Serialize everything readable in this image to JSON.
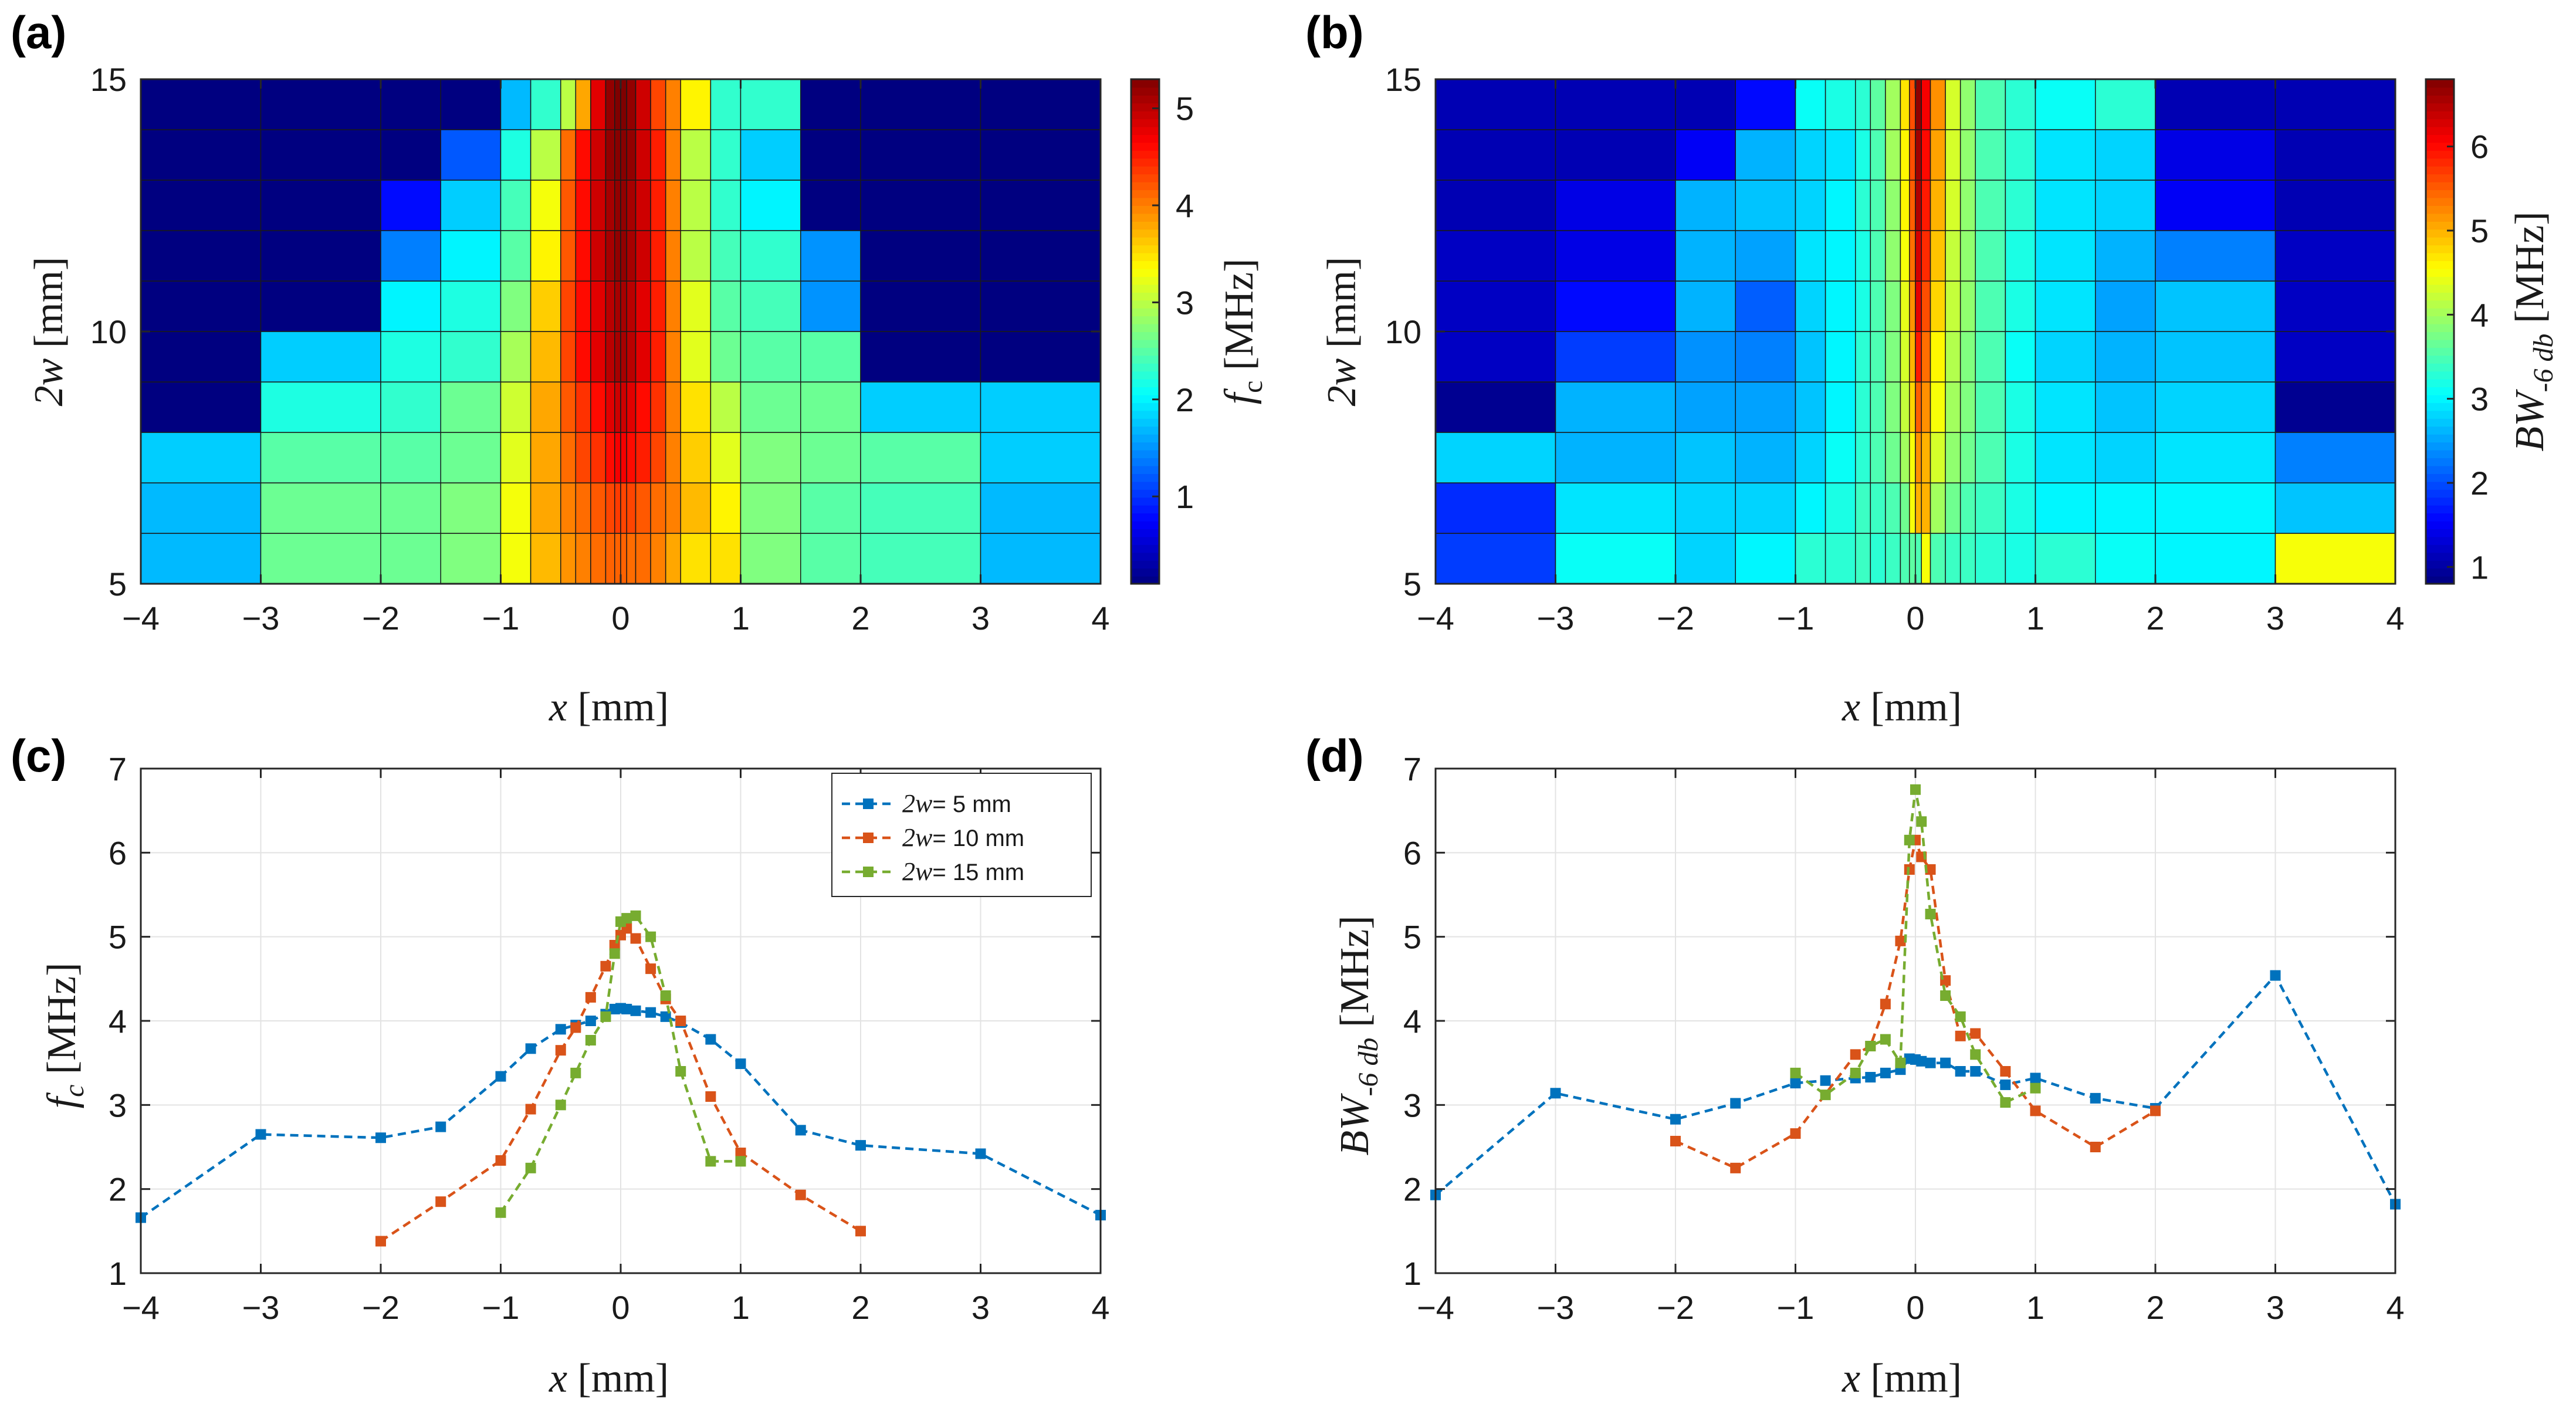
{
  "chart_data": [
    {
      "id": "a",
      "type": "heatmap",
      "panel_label": "(a)",
      "xlabel": {
        "var": "x",
        "unit": "[mm]"
      },
      "ylabel": {
        "var": "2w",
        "unit": "[mm]"
      },
      "colorbar_label": {
        "var": "f",
        "sub": "c",
        "unit": "[MHz]"
      },
      "xlim": [
        -4,
        4
      ],
      "ylim": [
        5,
        15
      ],
      "clim": [
        0.1,
        5.3
      ],
      "xticks": [
        "-4",
        "-3",
        "-2",
        "-1",
        "0",
        "1",
        "2",
        "3",
        "4"
      ],
      "yticks": [
        "5",
        "10",
        "15"
      ],
      "cticks": [
        "1",
        "2",
        "3",
        "4",
        "5"
      ],
      "x_edges": [
        -4,
        -3,
        -2,
        -1.5,
        -1,
        -0.75,
        -0.5,
        -0.375,
        -0.25,
        -0.125,
        -0.05,
        0,
        0.05,
        0.125,
        0.25,
        0.375,
        0.5,
        0.75,
        1,
        1.5,
        2,
        3,
        4
      ],
      "y_edges": [
        5,
        6,
        7,
        8,
        9,
        10,
        11,
        12,
        13,
        14,
        15
      ],
      "z": [
        [
          1.7,
          2.6,
          2.6,
          2.7,
          3.3,
          3.7,
          3.9,
          4.0,
          4.1,
          4.15,
          4.15,
          4.15,
          4.1,
          4.1,
          4.0,
          3.8,
          3.5,
          3.5,
          2.7,
          2.5,
          2.4,
          1.7
        ],
        [
          1.7,
          2.6,
          2.6,
          2.7,
          3.3,
          3.8,
          4.0,
          4.1,
          4.2,
          4.3,
          4.35,
          4.3,
          4.3,
          4.2,
          4.1,
          4.0,
          3.7,
          3.4,
          2.7,
          2.5,
          2.4,
          1.7
        ],
        [
          1.8,
          2.5,
          2.5,
          2.6,
          3.2,
          3.8,
          4.1,
          4.3,
          4.4,
          4.6,
          4.7,
          4.7,
          4.6,
          4.5,
          4.3,
          4.0,
          3.6,
          3.2,
          2.7,
          2.6,
          2.5,
          1.8
        ],
        [
          0.1,
          2.2,
          2.3,
          2.6,
          3.1,
          3.8,
          4.2,
          4.4,
          4.6,
          4.8,
          4.9,
          4.9,
          4.8,
          4.6,
          4.4,
          4.0,
          3.5,
          3.0,
          2.6,
          2.6,
          1.8,
          1.8
        ],
        [
          0.1,
          1.8,
          2.2,
          2.3,
          2.9,
          3.7,
          4.3,
          4.6,
          4.8,
          5.0,
          5.1,
          5.1,
          5.0,
          4.8,
          4.5,
          4.0,
          3.2,
          2.6,
          2.5,
          2.5,
          0.1,
          0.1
        ],
        [
          0.1,
          0.1,
          2.0,
          2.2,
          2.7,
          3.6,
          4.3,
          4.6,
          4.8,
          5.0,
          5.1,
          5.1,
          5.0,
          4.8,
          4.5,
          4.0,
          3.2,
          2.5,
          2.4,
          1.5,
          0.1,
          0.1
        ],
        [
          0.1,
          0.1,
          1.4,
          2.0,
          2.5,
          3.4,
          4.2,
          4.6,
          4.9,
          5.1,
          5.2,
          5.2,
          5.1,
          4.9,
          4.5,
          4.0,
          3.0,
          2.4,
          2.3,
          1.5,
          0.1,
          0.1
        ],
        [
          0.1,
          0.1,
          0.8,
          1.8,
          2.4,
          3.3,
          4.2,
          4.6,
          4.9,
          5.1,
          5.2,
          5.2,
          5.1,
          4.9,
          4.5,
          4.0,
          3.0,
          2.3,
          2.0,
          0.1,
          0.1,
          0.1
        ],
        [
          0.1,
          0.1,
          0.1,
          1.2,
          2.2,
          3.0,
          4.1,
          4.6,
          4.9,
          5.2,
          5.25,
          5.25,
          5.2,
          4.9,
          4.5,
          4.0,
          3.0,
          2.3,
          1.8,
          0.1,
          0.1,
          0.1
        ],
        [
          0.1,
          0.1,
          0.1,
          0.1,
          1.7,
          2.3,
          3.0,
          3.8,
          4.8,
          5.2,
          5.3,
          5.3,
          5.2,
          4.9,
          4.3,
          4.0,
          3.4,
          2.3,
          2.3,
          0.1,
          0.1,
          0.1
        ]
      ]
    },
    {
      "id": "b",
      "type": "heatmap",
      "panel_label": "(b)",
      "xlabel": {
        "var": "x",
        "unit": "[mm]"
      },
      "ylabel": {
        "var": "2w",
        "unit": "[mm]"
      },
      "colorbar_label": {
        "var": "BW",
        "sub": "-6 db",
        "unit": "[MHz]"
      },
      "xlim": [
        -4,
        4
      ],
      "ylim": [
        5,
        15
      ],
      "clim": [
        0.8,
        6.8
      ],
      "xticks": [
        "-4",
        "-3",
        "-2",
        "-1",
        "0",
        "1",
        "2",
        "3",
        "4"
      ],
      "yticks": [
        "5",
        "10",
        "15"
      ],
      "cticks": [
        "1",
        "2",
        "3",
        "4",
        "5",
        "6"
      ],
      "x_edges": [
        -4,
        -3,
        -2,
        -1.5,
        -1,
        -0.75,
        -0.5,
        -0.375,
        -0.25,
        -0.125,
        -0.05,
        0,
        0.05,
        0.125,
        0.25,
        0.375,
        0.5,
        0.75,
        1,
        1.5,
        2,
        3,
        4
      ],
      "y_edges": [
        5,
        6,
        7,
        8,
        9,
        10,
        11,
        12,
        13,
        14,
        15
      ],
      "z": [
        [
          1.9,
          3.1,
          2.8,
          3.0,
          3.3,
          3.3,
          3.4,
          3.3,
          3.4,
          3.5,
          3.6,
          3.5,
          4.5,
          3.5,
          3.4,
          3.4,
          3.3,
          3.2,
          3.3,
          3.1,
          3.0,
          4.5
        ],
        [
          1.8,
          2.9,
          2.8,
          2.8,
          3.0,
          3.2,
          3.4,
          3.4,
          3.5,
          3.7,
          4.5,
          5.0,
          5.0,
          4.0,
          3.7,
          3.5,
          3.4,
          3.2,
          3.0,
          3.0,
          3.0,
          2.7
        ],
        [
          2.8,
          2.6,
          2.7,
          2.6,
          2.8,
          3.1,
          3.3,
          3.5,
          3.7,
          4.0,
          4.5,
          5.2,
          5.0,
          4.3,
          3.9,
          3.7,
          3.5,
          3.2,
          2.9,
          2.8,
          2.9,
          2.3
        ],
        [
          0.9,
          2.6,
          2.5,
          2.5,
          2.7,
          3.0,
          3.3,
          3.5,
          3.8,
          4.2,
          4.8,
          5.5,
          5.2,
          4.5,
          4.0,
          3.8,
          3.5,
          3.2,
          2.9,
          2.7,
          2.8,
          0.9
        ],
        [
          1.2,
          1.9,
          2.4,
          2.3,
          2.7,
          3.0,
          3.3,
          3.5,
          3.8,
          4.3,
          5.0,
          5.9,
          5.4,
          4.6,
          4.1,
          3.8,
          3.5,
          3.1,
          2.8,
          2.6,
          2.7,
          1.2
        ],
        [
          1.2,
          1.6,
          2.6,
          2.1,
          2.8,
          3.0,
          3.2,
          3.5,
          3.8,
          4.4,
          5.2,
          6.2,
          5.6,
          4.8,
          4.2,
          3.9,
          3.5,
          3.2,
          2.9,
          2.5,
          2.7,
          1.2
        ],
        [
          1.2,
          1.4,
          2.6,
          2.5,
          2.9,
          3.0,
          3.2,
          3.5,
          3.9,
          4.5,
          5.4,
          6.3,
          5.8,
          4.9,
          4.2,
          3.9,
          3.5,
          3.2,
          2.9,
          2.6,
          2.3,
          1.2
        ],
        [
          1.1,
          1.4,
          2.6,
          2.7,
          2.8,
          3.0,
          3.3,
          3.5,
          3.9,
          4.6,
          5.5,
          6.5,
          5.9,
          5.0,
          4.3,
          3.9,
          3.5,
          3.3,
          2.9,
          2.8,
          1.5,
          1.1
        ],
        [
          1.1,
          1.1,
          1.5,
          2.6,
          2.8,
          2.9,
          3.2,
          3.5,
          4.0,
          4.6,
          5.6,
          6.6,
          6.0,
          5.1,
          4.3,
          3.9,
          3.5,
          3.3,
          2.9,
          2.8,
          1.4,
          1.1
        ],
        [
          1.1,
          1.1,
          1.1,
          1.6,
          3.1,
          3.2,
          3.3,
          3.6,
          4.0,
          4.7,
          5.6,
          6.7,
          6.1,
          5.2,
          4.3,
          3.9,
          3.5,
          3.3,
          3.1,
          3.3,
          1.1,
          1.1
        ]
      ]
    },
    {
      "id": "c",
      "type": "line",
      "panel_label": "(c)",
      "xlabel": {
        "var": "x",
        "unit": "[mm]"
      },
      "ylabel": {
        "var": "f",
        "sub": "c",
        "unit": "[MHz]"
      },
      "xlim": [
        -4,
        4
      ],
      "ylim": [
        1,
        7
      ],
      "xticks": [
        "-4",
        "-3",
        "-2",
        "-1",
        "0",
        "1",
        "2",
        "3",
        "4"
      ],
      "yticks": [
        "1",
        "2",
        "3",
        "4",
        "5",
        "6",
        "7"
      ],
      "grid": true,
      "legend_position": "top-right",
      "series": [
        {
          "name_var": "2w",
          "name_rest": "= 5 mm",
          "color": "#0072BD",
          "x": [
            -4,
            -3,
            -2,
            -1.5,
            -1,
            -0.75,
            -0.5,
            -0.375,
            -0.25,
            -0.125,
            -0.05,
            0,
            0.05,
            0.125,
            0.25,
            0.375,
            0.5,
            0.75,
            1,
            1.5,
            2,
            3,
            4
          ],
          "y": [
            1.66,
            2.65,
            2.61,
            2.74,
            3.34,
            3.67,
            3.9,
            3.95,
            4.0,
            4.08,
            4.14,
            4.15,
            4.14,
            4.12,
            4.1,
            4.05,
            3.98,
            3.78,
            3.49,
            2.7,
            2.52,
            2.42,
            1.69
          ]
        },
        {
          "name_var": "2w",
          "name_rest": "= 10 mm",
          "color": "#D95319",
          "x": [
            -2,
            -1.5,
            -1,
            -0.75,
            -0.5,
            -0.375,
            -0.25,
            -0.125,
            -0.05,
            0,
            0.05,
            0.125,
            0.25,
            0.375,
            0.5,
            0.75,
            1,
            1.5,
            2
          ],
          "y": [
            1.38,
            1.85,
            2.34,
            2.95,
            3.65,
            3.92,
            4.28,
            4.65,
            4.9,
            5.02,
            5.1,
            4.98,
            4.62,
            4.26,
            4.0,
            3.1,
            2.43,
            1.93,
            1.5
          ]
        },
        {
          "name_var": "2w",
          "name_rest": "= 15 mm",
          "color": "#77AC30",
          "x": [
            -1,
            -0.75,
            -0.5,
            -0.375,
            -0.25,
            -0.125,
            -0.05,
            0,
            0.05,
            0.125,
            0.25,
            0.375,
            0.5,
            0.75,
            1
          ],
          "y": [
            1.72,
            2.25,
            3.0,
            3.38,
            3.77,
            4.05,
            4.8,
            5.18,
            5.22,
            5.25,
            5.0,
            4.3,
            3.4,
            2.33,
            2.33
          ]
        }
      ],
      "legend_labels": [
        "= 5 mm",
        "= 10 mm",
        "= 15 mm"
      ]
    },
    {
      "id": "d",
      "type": "line",
      "panel_label": "(d)",
      "xlabel": {
        "var": "x",
        "unit": "[mm]"
      },
      "ylabel": {
        "var": "BW",
        "sub": "-6 db",
        "unit": "[MHz]"
      },
      "xlim": [
        -4,
        4
      ],
      "ylim": [
        1,
        7
      ],
      "xticks": [
        "-4",
        "-3",
        "-2",
        "-1",
        "0",
        "1",
        "2",
        "3",
        "4"
      ],
      "yticks": [
        "1",
        "2",
        "3",
        "4",
        "5",
        "6",
        "7"
      ],
      "grid": true,
      "series": [
        {
          "name_var": "2w",
          "name_rest": "= 5 mm",
          "color": "#0072BD",
          "x": [
            -4,
            -3,
            -2,
            -1.5,
            -1,
            -0.75,
            -0.5,
            -0.375,
            -0.25,
            -0.125,
            -0.05,
            0,
            0.05,
            0.125,
            0.25,
            0.375,
            0.5,
            0.75,
            1,
            1.5,
            2,
            3,
            4
          ],
          "y": [
            1.93,
            3.14,
            2.83,
            3.02,
            3.26,
            3.29,
            3.32,
            3.33,
            3.38,
            3.42,
            3.55,
            3.54,
            3.52,
            3.5,
            3.5,
            3.4,
            3.4,
            3.24,
            3.32,
            3.08,
            2.96,
            4.54,
            1.82
          ]
        },
        {
          "name_var": "2w",
          "name_rest": "= 10 mm",
          "color": "#D95319",
          "x": [
            -2,
            -1.5,
            -1,
            -0.5,
            -0.375,
            -0.25,
            -0.125,
            -0.05,
            0,
            0.05,
            0.125,
            0.25,
            0.375,
            0.5,
            0.75,
            1,
            1.5,
            2
          ],
          "y": [
            2.57,
            2.25,
            2.66,
            3.6,
            3.7,
            4.2,
            4.95,
            5.8,
            6.15,
            5.95,
            5.8,
            4.48,
            3.82,
            3.85,
            3.4,
            2.93,
            2.5,
            2.93
          ]
        },
        {
          "name_var": "2w",
          "name_rest": "= 15 mm",
          "color": "#77AC30",
          "x": [
            -1,
            -0.75,
            -0.5,
            -0.375,
            -0.25,
            -0.125,
            -0.05,
            0,
            0.05,
            0.125,
            0.25,
            0.375,
            0.5,
            0.75,
            1
          ],
          "y": [
            3.38,
            3.12,
            3.38,
            3.7,
            3.78,
            3.5,
            6.15,
            6.75,
            6.37,
            5.27,
            4.3,
            4.05,
            3.6,
            3.03,
            3.2
          ]
        }
      ]
    }
  ]
}
